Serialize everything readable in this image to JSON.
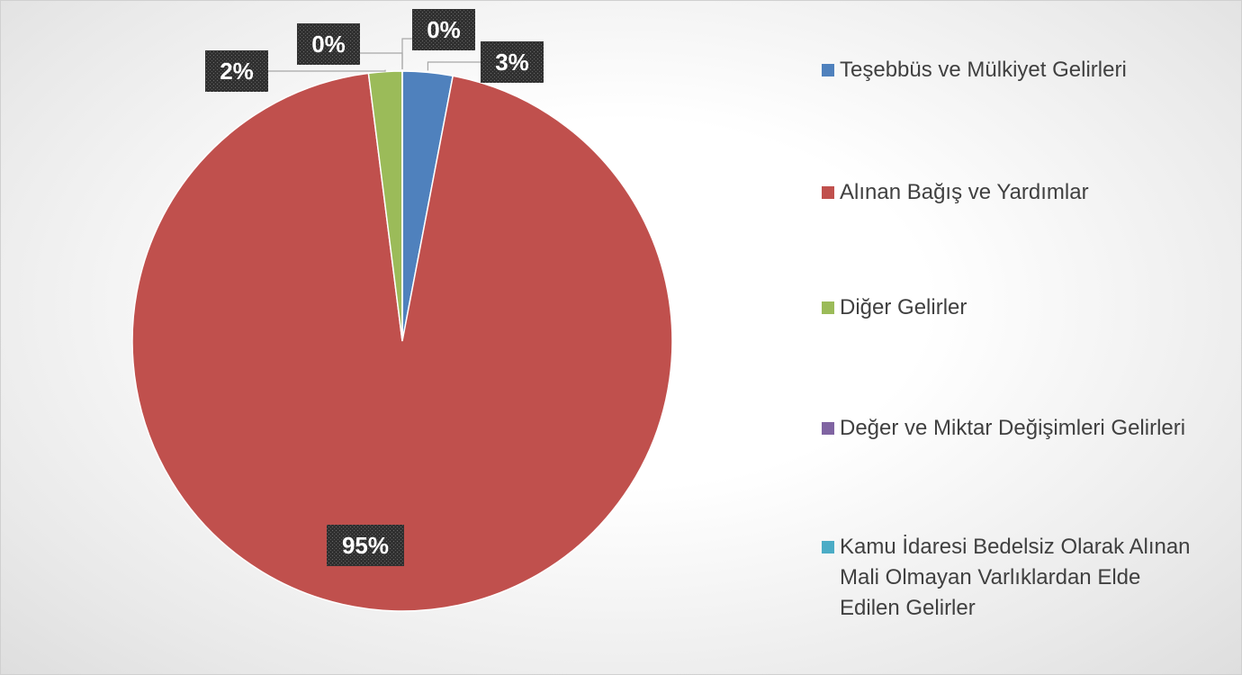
{
  "chart_data": {
    "type": "pie",
    "categories": [
      "Teşebbüs ve Mülkiyet Gelirleri",
      "Alınan Bağış ve Yardımlar",
      "Diğer Gelirler",
      "Değer ve Miktar Değişimleri Gelirleri",
      "Kamu İdaresi Bedelsiz Olarak Alınan Mali Olmayan Varlıklardan Elde Edilen Gelirler"
    ],
    "values": [
      3,
      95,
      2,
      0,
      0
    ],
    "value_labels": [
      "3%",
      "95%",
      "2%",
      "0%",
      "0%"
    ],
    "colors": [
      "#4f81bd",
      "#c0504d",
      "#9bbb59",
      "#8064a2",
      "#4bacc6"
    ],
    "legend": "right"
  }
}
